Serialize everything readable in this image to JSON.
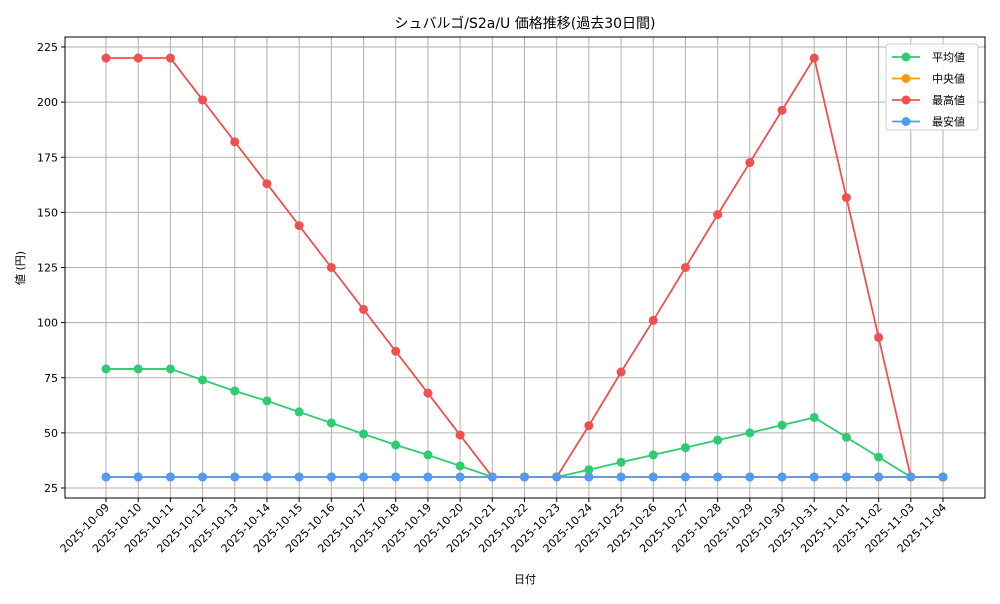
{
  "chart_data": {
    "type": "line",
    "title": "シュバルゴ/S2a/U 価格推移(過去30日間)",
    "xlabel": "日付",
    "ylabel": "値 (円)",
    "ylim": [
      20,
      230
    ],
    "yticks": [
      25,
      50,
      75,
      100,
      125,
      150,
      175,
      200,
      225
    ],
    "grid": true,
    "legend_position": "upper right",
    "categories": [
      "2025-10-09",
      "2025-10-10",
      "2025-10-11",
      "2025-10-12",
      "2025-10-13",
      "2025-10-14",
      "2025-10-15",
      "2025-10-16",
      "2025-10-17",
      "2025-10-18",
      "2025-10-19",
      "2025-10-20",
      "2025-10-21",
      "2025-10-22",
      "2025-10-23",
      "2025-10-24",
      "2025-10-25",
      "2025-10-26",
      "2025-10-27",
      "2025-10-28",
      "2025-10-29",
      "2025-10-30",
      "2025-10-31",
      "2025-11-01",
      "2025-11-02",
      "2025-11-03",
      "2025-11-04"
    ],
    "series": [
      {
        "name": "平均値",
        "color": "#2ecc71",
        "values": [
          79,
          79,
          79,
          74,
          69,
          64.5,
          59.5,
          54.5,
          49.5,
          44.5,
          40,
          35,
          30,
          30,
          30,
          33.3,
          36.7,
          40,
          43.3,
          46.7,
          50,
          53.5,
          57,
          48,
          39,
          30,
          30
        ]
      },
      {
        "name": "中央値",
        "color": "#f39c12",
        "values": [
          30,
          30,
          30,
          30,
          30,
          30,
          30,
          30,
          30,
          30,
          30,
          30,
          30,
          30,
          30,
          30,
          30,
          30,
          30,
          30,
          30,
          30,
          30,
          30,
          30,
          30,
          30
        ]
      },
      {
        "name": "最高値",
        "color": "#f05050",
        "values": [
          220,
          220,
          220,
          201,
          182,
          163,
          144,
          125,
          106,
          87,
          68,
          49,
          30,
          30,
          30,
          53.3,
          77.6,
          101,
          125,
          149,
          172.6,
          196.3,
          220,
          156.7,
          93.3,
          30,
          30
        ]
      },
      {
        "name": "最安値",
        "color": "#4f9bf5",
        "values": [
          30,
          30,
          30,
          30,
          30,
          30,
          30,
          30,
          30,
          30,
          30,
          30,
          30,
          30,
          30,
          30,
          30,
          30,
          30,
          30,
          30,
          30,
          30,
          30,
          30,
          30,
          30
        ]
      }
    ]
  }
}
